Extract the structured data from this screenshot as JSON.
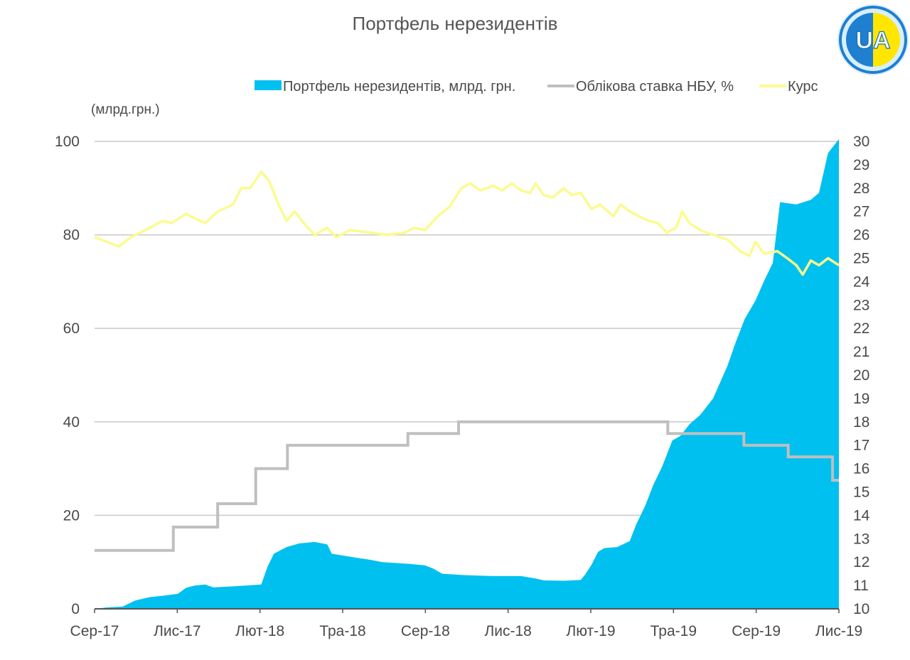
{
  "chart_data": {
    "type": "area",
    "title": "Портфель нерезидентів",
    "ylabel": "(млрд.грн.)",
    "y_left": {
      "range": [
        0,
        100
      ],
      "ticks": [
        0,
        20,
        40,
        60,
        80,
        100
      ]
    },
    "y_right": {
      "range": [
        10,
        30
      ],
      "ticks": [
        10,
        11,
        12,
        13,
        14,
        15,
        16,
        17,
        18,
        19,
        20,
        21,
        22,
        23,
        24,
        25,
        26,
        27,
        28,
        29,
        30
      ]
    },
    "x_ticks": [
      "Сер-17",
      "Лис-17",
      "Лют-18",
      "Тра-18",
      "Сер-18",
      "Лис-18",
      "Лют-19",
      "Тра-19",
      "Сер-19",
      "Лис-19"
    ],
    "x_range": [
      "2017-08-01",
      "2019-11-01"
    ],
    "grid": "horizontal",
    "legend_position": "top",
    "series": [
      {
        "name": "Портфель нерезидентів, млрд. грн.",
        "kind": "area",
        "axis": "left",
        "color": "#00c0ef",
        "points": [
          [
            "2017-08-01",
            0
          ],
          [
            "2017-08-15",
            0.3
          ],
          [
            "2017-09-01",
            0.5
          ],
          [
            "2017-09-15",
            1.8
          ],
          [
            "2017-10-01",
            2.5
          ],
          [
            "2017-10-15",
            2.8
          ],
          [
            "2017-11-01",
            3.2
          ],
          [
            "2017-11-10",
            4.5
          ],
          [
            "2017-11-20",
            5.0
          ],
          [
            "2017-12-01",
            5.2
          ],
          [
            "2017-12-10",
            4.6
          ],
          [
            "2018-01-01",
            4.8
          ],
          [
            "2018-02-01",
            5.2
          ],
          [
            "2018-02-08",
            9.0
          ],
          [
            "2018-02-15",
            11.8
          ],
          [
            "2018-03-01",
            13.2
          ],
          [
            "2018-03-15",
            14.0
          ],
          [
            "2018-04-01",
            14.3
          ],
          [
            "2018-04-15",
            13.8
          ],
          [
            "2018-04-20",
            11.8
          ],
          [
            "2018-05-15",
            11.0
          ],
          [
            "2018-06-01",
            10.5
          ],
          [
            "2018-06-15",
            10.0
          ],
          [
            "2018-07-15",
            9.6
          ],
          [
            "2018-08-01",
            9.3
          ],
          [
            "2018-08-10",
            8.6
          ],
          [
            "2018-08-20",
            7.5
          ],
          [
            "2018-09-15",
            7.2
          ],
          [
            "2018-10-15",
            7.0
          ],
          [
            "2018-11-15",
            7.0
          ],
          [
            "2018-12-01",
            6.5
          ],
          [
            "2018-12-10",
            6.1
          ],
          [
            "2019-01-01",
            6.0
          ],
          [
            "2019-01-20",
            6.2
          ],
          [
            "2019-01-25",
            7.4
          ],
          [
            "2019-02-01",
            9.5
          ],
          [
            "2019-02-08",
            12.2
          ],
          [
            "2019-02-15",
            13.0
          ],
          [
            "2019-03-01",
            13.2
          ],
          [
            "2019-03-15",
            14.5
          ],
          [
            "2019-03-22",
            18.0
          ],
          [
            "2019-04-01",
            22.0
          ],
          [
            "2019-04-10",
            26.5
          ],
          [
            "2019-04-20",
            30.5
          ],
          [
            "2019-05-01",
            36.0
          ],
          [
            "2019-05-10",
            37.0
          ],
          [
            "2019-05-20",
            39.5
          ],
          [
            "2019-06-01",
            41.5
          ],
          [
            "2019-06-15",
            45.0
          ],
          [
            "2019-07-01",
            52.0
          ],
          [
            "2019-07-10",
            57.0
          ],
          [
            "2019-07-20",
            62.0
          ],
          [
            "2019-08-01",
            66.0
          ],
          [
            "2019-08-10",
            70.0
          ],
          [
            "2019-08-20",
            74.0
          ],
          [
            "2019-08-28",
            87.0
          ],
          [
            "2019-09-15",
            86.5
          ],
          [
            "2019-10-01",
            87.5
          ],
          [
            "2019-10-10",
            89.0
          ],
          [
            "2019-10-20",
            97.5
          ],
          [
            "2019-11-01",
            100.5
          ]
        ]
      },
      {
        "name": "Облікова ставка НБУ, %",
        "kind": "step",
        "axis": "right",
        "color": "#bfbfbf",
        "points": [
          [
            "2017-08-01",
            12.5
          ],
          [
            "2017-10-27",
            13.5
          ],
          [
            "2017-12-15",
            14.5
          ],
          [
            "2018-01-26",
            16.0
          ],
          [
            "2018-03-02",
            17.0
          ],
          [
            "2018-07-13",
            17.5
          ],
          [
            "2018-09-07",
            18.0
          ],
          [
            "2019-04-26",
            17.5
          ],
          [
            "2019-07-19",
            17.0
          ],
          [
            "2019-09-06",
            16.5
          ],
          [
            "2019-10-25",
            15.5
          ],
          [
            "2019-11-01",
            15.5
          ]
        ]
      },
      {
        "name": "Курс",
        "kind": "line",
        "axis": "right",
        "color": "#fbfb8f",
        "points": [
          [
            "2017-08-01",
            25.9
          ],
          [
            "2017-08-15",
            25.7
          ],
          [
            "2017-08-28",
            25.5
          ],
          [
            "2017-09-10",
            25.9
          ],
          [
            "2017-10-01",
            26.3
          ],
          [
            "2017-10-15",
            26.6
          ],
          [
            "2017-10-25",
            26.5
          ],
          [
            "2017-11-10",
            26.9
          ],
          [
            "2017-11-20",
            26.7
          ],
          [
            "2017-12-01",
            26.5
          ],
          [
            "2017-12-15",
            27.0
          ],
          [
            "2018-01-01",
            27.3
          ],
          [
            "2018-01-10",
            28.0
          ],
          [
            "2018-01-20",
            28.0
          ],
          [
            "2018-02-01",
            28.7
          ],
          [
            "2018-02-10",
            28.3
          ],
          [
            "2018-02-20",
            27.3
          ],
          [
            "2018-03-01",
            26.6
          ],
          [
            "2018-03-10",
            27.0
          ],
          [
            "2018-03-20",
            26.5
          ],
          [
            "2018-04-01",
            26.0
          ],
          [
            "2018-04-15",
            26.3
          ],
          [
            "2018-04-25",
            25.9
          ],
          [
            "2018-05-10",
            26.2
          ],
          [
            "2018-06-01",
            26.1
          ],
          [
            "2018-06-20",
            26.0
          ],
          [
            "2018-07-10",
            26.1
          ],
          [
            "2018-07-20",
            26.3
          ],
          [
            "2018-08-01",
            26.2
          ],
          [
            "2018-08-15",
            26.8
          ],
          [
            "2018-08-28",
            27.2
          ],
          [
            "2018-09-10",
            28.0
          ],
          [
            "2018-09-20",
            28.2
          ],
          [
            "2018-10-01",
            27.9
          ],
          [
            "2018-10-15",
            28.1
          ],
          [
            "2018-10-25",
            27.9
          ],
          [
            "2018-11-05",
            28.2
          ],
          [
            "2018-11-15",
            27.9
          ],
          [
            "2018-11-25",
            27.8
          ],
          [
            "2018-12-01",
            28.2
          ],
          [
            "2018-12-10",
            27.7
          ],
          [
            "2018-12-20",
            27.6
          ],
          [
            "2019-01-01",
            28.0
          ],
          [
            "2019-01-10",
            27.7
          ],
          [
            "2019-01-20",
            27.8
          ],
          [
            "2019-02-01",
            27.1
          ],
          [
            "2019-02-10",
            27.3
          ],
          [
            "2019-02-25",
            26.8
          ],
          [
            "2019-03-05",
            27.3
          ],
          [
            "2019-03-15",
            27.0
          ],
          [
            "2019-03-25",
            26.8
          ],
          [
            "2019-04-05",
            26.6
          ],
          [
            "2019-04-15",
            26.5
          ],
          [
            "2019-04-25",
            26.1
          ],
          [
            "2019-05-05",
            26.3
          ],
          [
            "2019-05-12",
            27.0
          ],
          [
            "2019-05-20",
            26.5
          ],
          [
            "2019-06-01",
            26.2
          ],
          [
            "2019-06-15",
            26.0
          ],
          [
            "2019-07-01",
            25.8
          ],
          [
            "2019-07-15",
            25.3
          ],
          [
            "2019-07-25",
            25.1
          ],
          [
            "2019-08-01",
            25.7
          ],
          [
            "2019-08-10",
            25.2
          ],
          [
            "2019-08-25",
            25.3
          ],
          [
            "2019-09-05",
            25.0
          ],
          [
            "2019-09-15",
            24.7
          ],
          [
            "2019-09-22",
            24.3
          ],
          [
            "2019-10-01",
            24.9
          ],
          [
            "2019-10-10",
            24.7
          ],
          [
            "2019-10-20",
            25.0
          ],
          [
            "2019-10-28",
            24.8
          ],
          [
            "2019-11-01",
            24.7
          ]
        ]
      }
    ]
  },
  "logo": {
    "text": "UA",
    "colors": {
      "blue": "#1f7fd0",
      "yellow": "#ffe600",
      "ring": "#d8efff"
    }
  },
  "colors": {
    "grid": "#c8c8c8",
    "axis": "#555555",
    "text": "#4a4a4a"
  }
}
